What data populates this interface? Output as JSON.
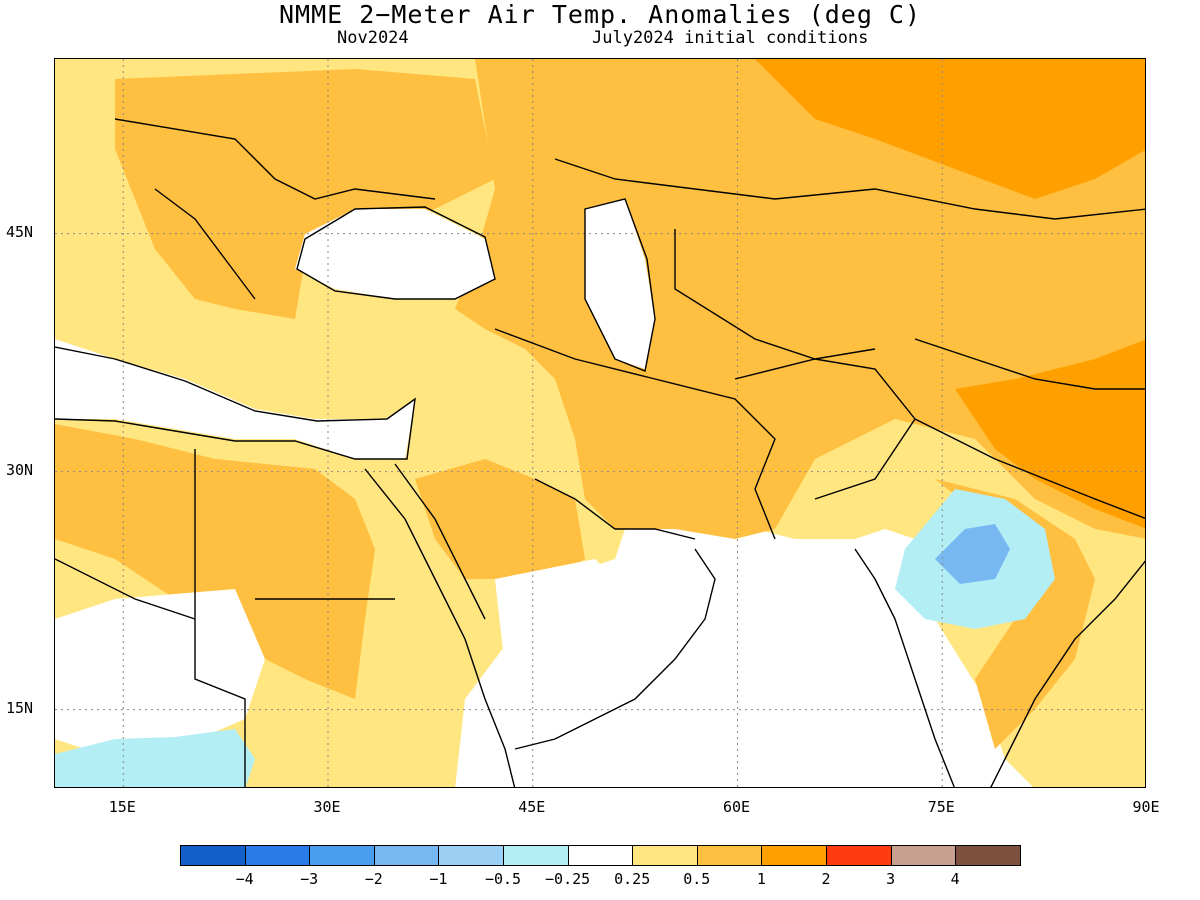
{
  "title": "NMME 2−Meter Air Temp. Anomalies (deg C)",
  "subtitle_left": "Nov2024",
  "subtitle_right": "July2024 initial conditions",
  "lon_ticks": [
    {
      "value": 15,
      "label": "15E"
    },
    {
      "value": 30,
      "label": "30E"
    },
    {
      "value": 45,
      "label": "45E"
    },
    {
      "value": 60,
      "label": "60E"
    },
    {
      "value": 75,
      "label": "75E"
    },
    {
      "value": 90,
      "label": "90E"
    }
  ],
  "lat_ticks": [
    {
      "value": 45,
      "label": "45N"
    },
    {
      "value": 30,
      "label": "30N"
    },
    {
      "value": 15,
      "label": "15N"
    }
  ],
  "extent": {
    "lon": [
      10,
      90
    ],
    "lat": [
      10,
      56
    ]
  },
  "colorbar": {
    "colors": [
      "#1560c8",
      "#2a7be8",
      "#4b9df0",
      "#78b8f2",
      "#9dd0f5",
      "#b3eef5",
      "#ffffff",
      "#ffe680",
      "#ffbf40",
      "#ffa000",
      "#ff3c10",
      "#c8a090",
      "#7d5040"
    ],
    "labels": [
      "−4",
      "−3",
      "−2",
      "−1",
      "−0.5",
      "−0.25",
      "0.25",
      "0.5",
      "1",
      "2",
      "3",
      "4"
    ]
  },
  "legend_colors": {
    "light_orange": "#ffe680",
    "orange": "#ffbf40",
    "dark_orange": "#ffa000",
    "light_blue": "#b3eef5",
    "blue": "#78b8f2"
  }
}
